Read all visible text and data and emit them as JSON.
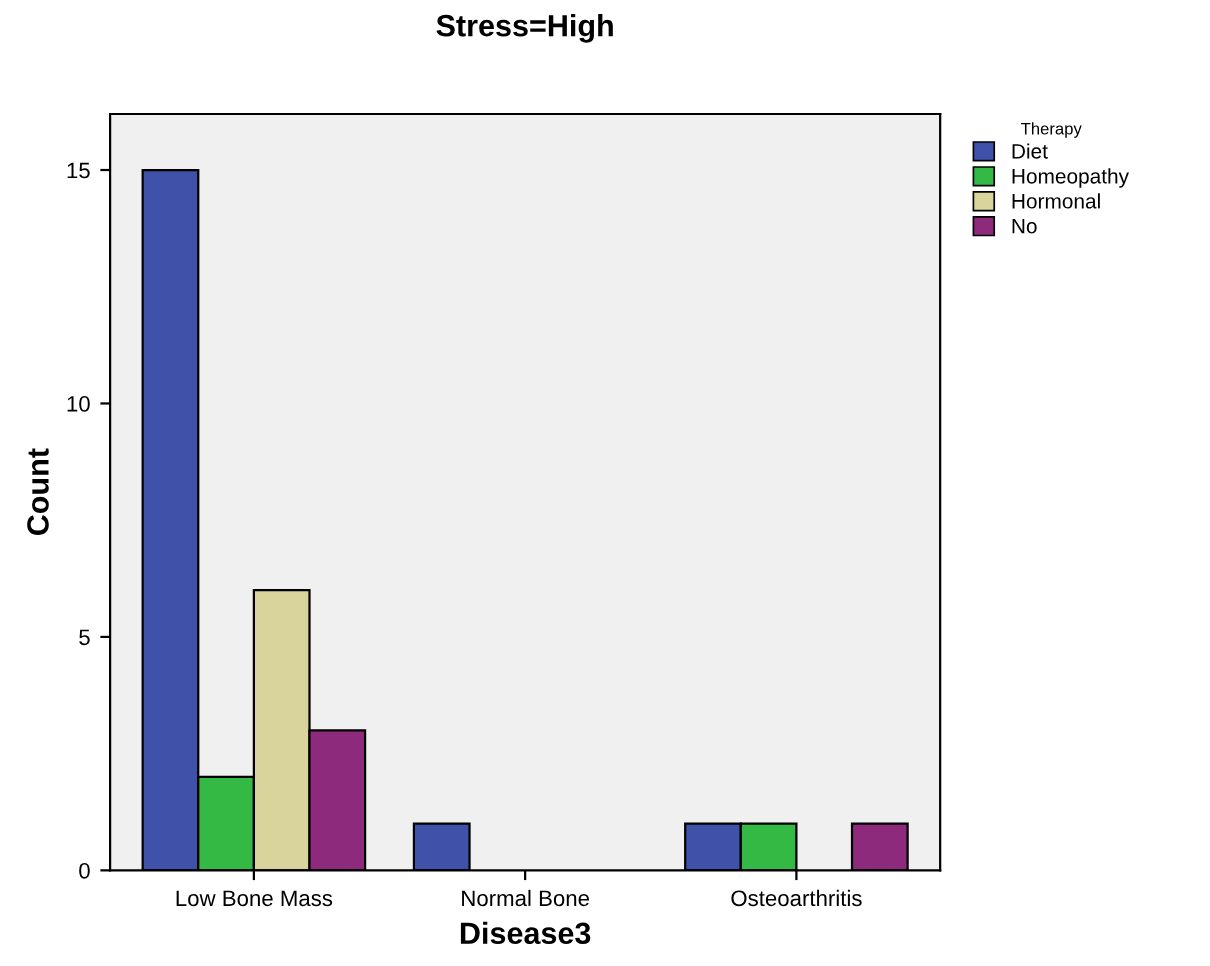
{
  "chart_data": {
    "type": "bar",
    "title": "Stress=High",
    "xlabel": "Disease3",
    "ylabel": "Count",
    "legend_title": "Therapy",
    "categories": [
      "Low Bone Mass",
      "Normal Bone",
      "Osteoarthritis"
    ],
    "series": [
      {
        "name": "Diet",
        "color": "#3f51a8",
        "values": [
          15,
          1,
          1
        ]
      },
      {
        "name": "Homeopathy",
        "color": "#33b944",
        "values": [
          2,
          null,
          1
        ]
      },
      {
        "name": "Hormonal",
        "color": "#d8d49c",
        "values": [
          6,
          null,
          null
        ]
      },
      {
        "name": "No",
        "color": "#8e2a7c",
        "values": [
          3,
          null,
          1
        ]
      }
    ],
    "ylim": [
      0,
      16.2
    ],
    "yticks": [
      0,
      5,
      10,
      15
    ],
    "grid": false,
    "legend": "top right"
  }
}
